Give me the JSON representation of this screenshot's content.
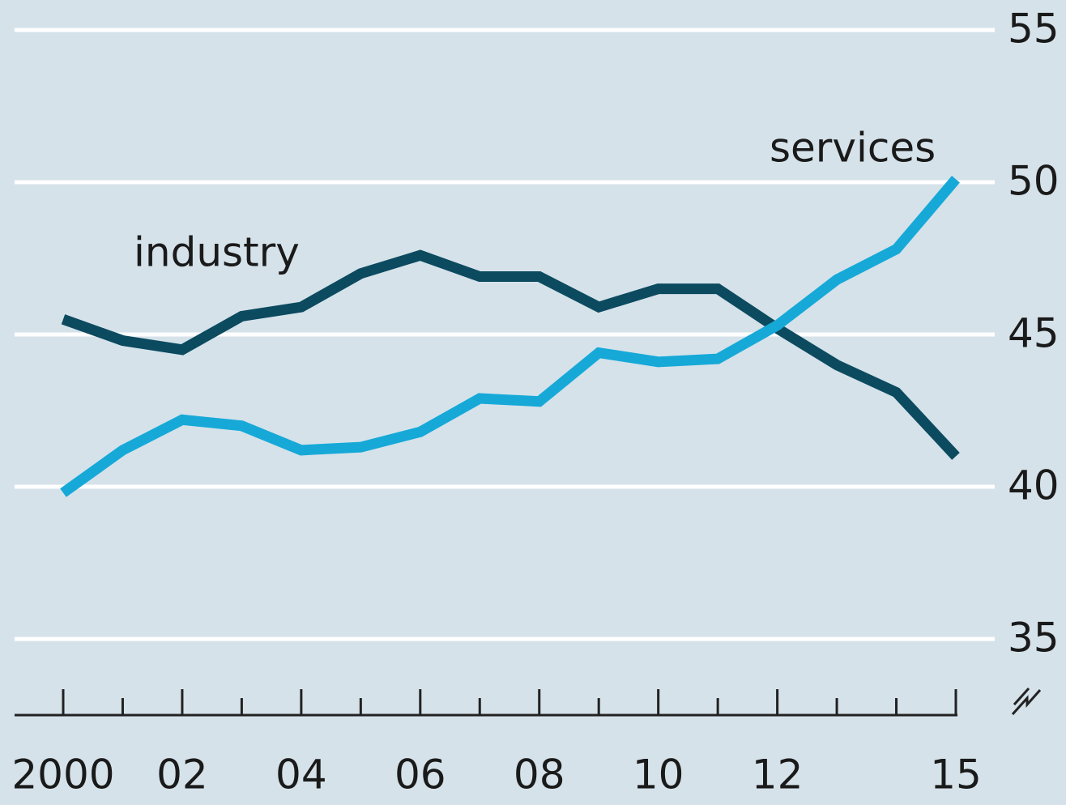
{
  "chart_data": {
    "type": "line",
    "x": [
      2000,
      2001,
      2002,
      2003,
      2004,
      2005,
      2006,
      2007,
      2008,
      2009,
      2010,
      2011,
      2012,
      2013,
      2014,
      2015
    ],
    "series": [
      {
        "name": "industry",
        "color": "#0c4a5f",
        "values": [
          45.5,
          44.8,
          44.5,
          45.6,
          45.9,
          47.0,
          47.6,
          46.9,
          46.9,
          45.9,
          46.5,
          46.5,
          45.2,
          44.0,
          43.1,
          41.0
        ]
      },
      {
        "name": "services",
        "color": "#16a9d8",
        "values": [
          39.8,
          41.2,
          42.2,
          42.0,
          41.2,
          41.3,
          41.8,
          42.9,
          42.8,
          44.4,
          44.1,
          44.2,
          45.3,
          46.8,
          47.8,
          50.1
        ]
      }
    ],
    "xlim": [
      2000,
      2015
    ],
    "xticks": [
      {
        "value": 2000,
        "label": "2000"
      },
      {
        "value": 2002,
        "label": "02"
      },
      {
        "value": 2004,
        "label": "04"
      },
      {
        "value": 2006,
        "label": "06"
      },
      {
        "value": 2008,
        "label": "08"
      },
      {
        "value": 2010,
        "label": "10"
      },
      {
        "value": 2012,
        "label": "12"
      },
      {
        "value": 2015,
        "label": "15"
      }
    ],
    "xminorticks": [
      2001,
      2003,
      2005,
      2007,
      2009,
      2011,
      2013,
      2014
    ],
    "ylim": [
      32.5,
      55
    ],
    "yticks": [
      35,
      40,
      45,
      50,
      55
    ],
    "grid": true
  }
}
